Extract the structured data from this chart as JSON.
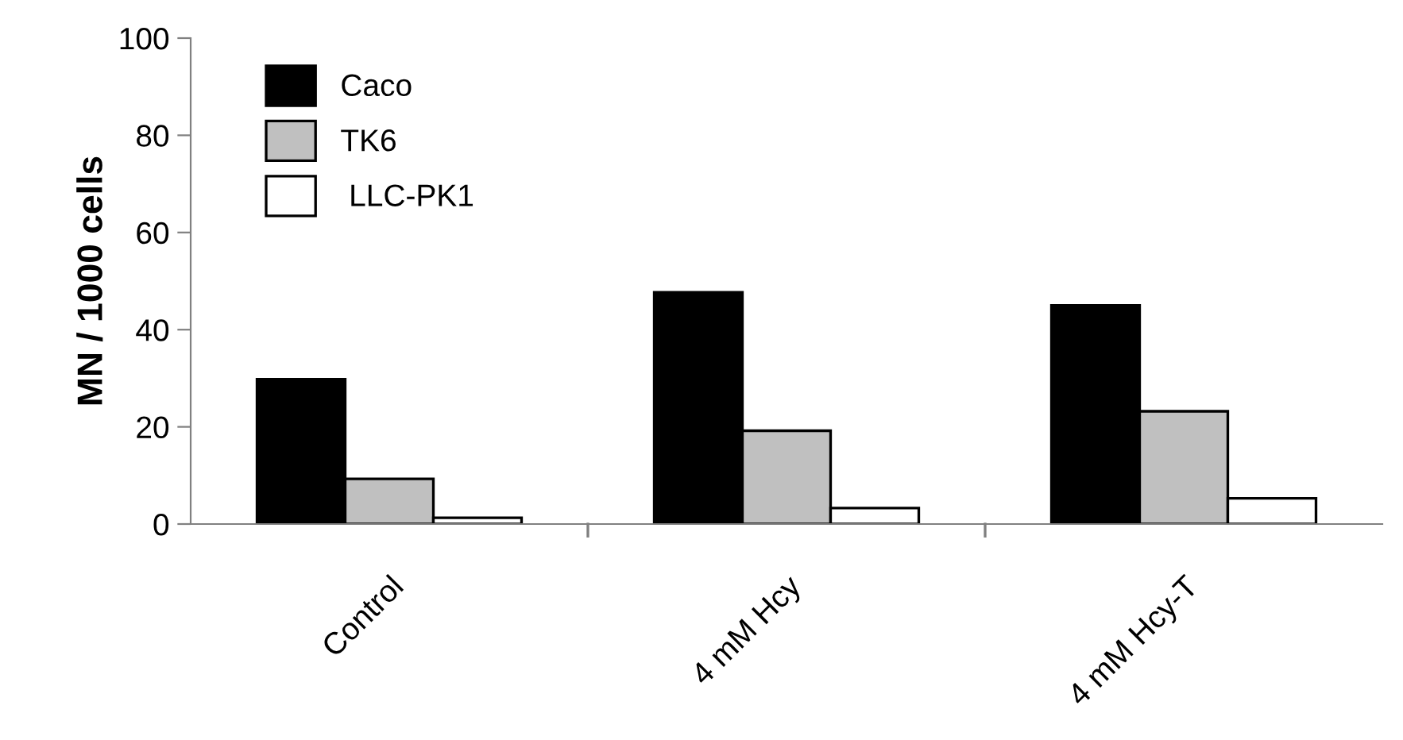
{
  "chart_data": {
    "type": "bar",
    "ylabel": "MN / 1000 cells",
    "categories": [
      "Control",
      "4 mM Hcy",
      "4 mM Hcy-T"
    ],
    "series": [
      {
        "name": "Caco",
        "color": "#000000",
        "values": [
          29.8,
          47.7,
          45.0
        ]
      },
      {
        "name": "TK6",
        "color": "#c0c0c0",
        "values": [
          9.3,
          19.2,
          23.2
        ]
      },
      {
        "name": " LLC-PK1",
        "color": "#ffffff",
        "values": [
          1.3,
          3.3,
          5.3
        ]
      }
    ],
    "ylim": [
      0,
      100
    ],
    "yticks": [
      0,
      20,
      40,
      60,
      80,
      100
    ],
    "grid": false,
    "legend": "top left"
  }
}
